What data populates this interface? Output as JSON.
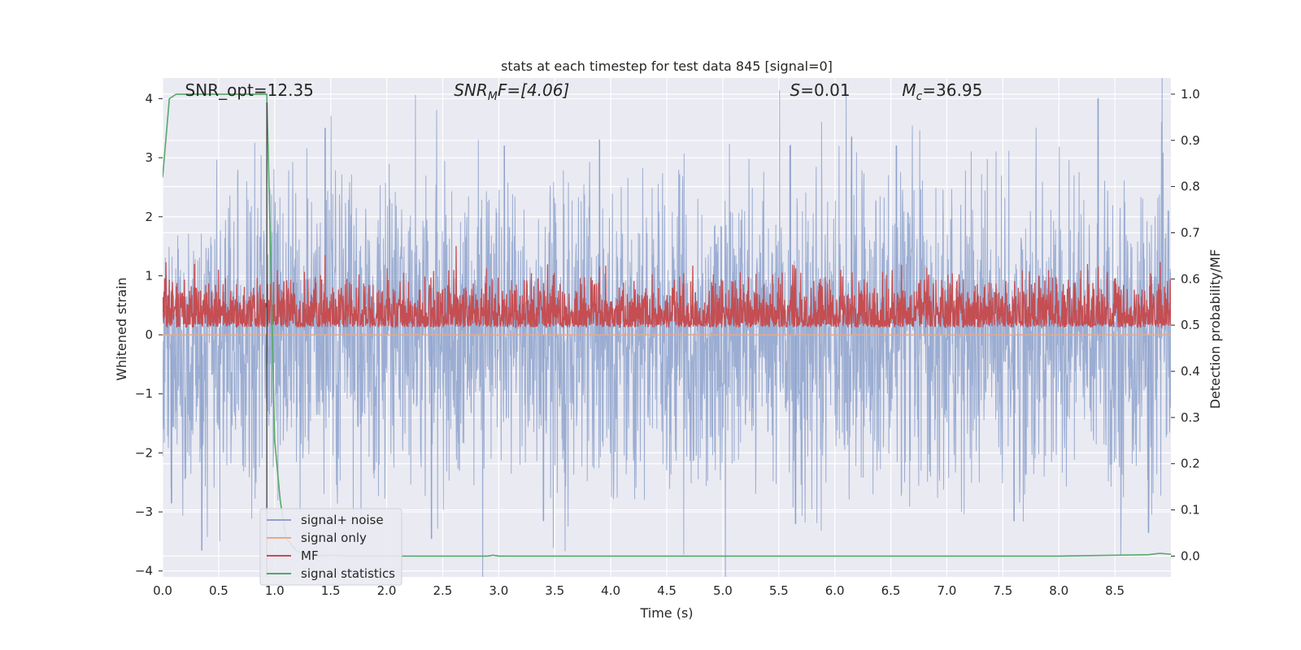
{
  "chart_data": {
    "type": "line",
    "title": "stats at each timestep for test data 845 [signal=0]",
    "xlabel": "Time (s)",
    "ylabel": "Whitened strain",
    "y2label": "Detection probability/MF",
    "xlim": [
      0,
      9
    ],
    "ylim": [
      -4.1,
      4.35
    ],
    "y2lim": [
      -0.045,
      1.035
    ],
    "x_ticks": [
      0.0,
      0.5,
      1.0,
      1.5,
      2.0,
      2.5,
      3.0,
      3.5,
      4.0,
      4.5,
      5.0,
      5.5,
      6.0,
      6.5,
      7.0,
      7.5,
      8.0,
      8.5
    ],
    "x_tick_labels": [
      "0.0",
      "0.5",
      "1.0",
      "1.5",
      "2.0",
      "2.5",
      "3.0",
      "3.5",
      "4.0",
      "4.5",
      "5.0",
      "5.5",
      "6.0",
      "6.5",
      "7.0",
      "7.5",
      "8.0",
      "8.5"
    ],
    "y_ticks": [
      4,
      3,
      2,
      1,
      0,
      -1,
      -2,
      -3,
      -4
    ],
    "y_tick_labels": [
      "4",
      "3",
      "2",
      "1",
      "0",
      "−1",
      "−2",
      "−3",
      "−4"
    ],
    "y2_ticks": [
      1.0,
      0.9,
      0.8,
      0.7,
      0.6,
      0.5,
      0.4,
      0.3,
      0.2,
      0.1,
      0.0
    ],
    "y2_tick_labels": [
      "1.0",
      "0.9",
      "0.8",
      "0.7",
      "0.6",
      "0.5",
      "0.4",
      "0.3",
      "0.2",
      "0.1",
      "0.0"
    ],
    "grid": true,
    "legend_position": "lower-left",
    "vertical_marker_x": 0.93,
    "annotations": [
      {
        "text": "SNR_opt=12.35",
        "x": 0.2,
        "y": 4.1
      },
      {
        "text": "SNR",
        "sub": "M",
        "suffix": "F=[4.06]",
        "italic": true,
        "x": 2.6,
        "y": 4.1
      },
      {
        "text": "S",
        "suffix": "=0.01",
        "italic": true,
        "x": 5.6,
        "y": 4.1
      },
      {
        "text": "M",
        "sub": "c",
        "suffix": "=36.95",
        "italic": true,
        "x": 6.6,
        "y": 4.1
      }
    ],
    "series": [
      {
        "name": "signal+ noise",
        "color": "#8da2cc",
        "axis": "left",
        "kind": "noise",
        "envelope_upper_typical": 2.0,
        "envelope_lower_typical": -2.0,
        "peaks": [
          {
            "x": 1.45,
            "y": 3.5
          },
          {
            "x": 3.05,
            "y": 3.2
          },
          {
            "x": 3.9,
            "y": 3.3
          },
          {
            "x": 5.6,
            "y": 3.2
          },
          {
            "x": 6.15,
            "y": 3.35
          },
          {
            "x": 6.55,
            "y": 3.2
          },
          {
            "x": 8.35,
            "y": 4.0
          },
          {
            "x": 0.35,
            "y": -3.65
          },
          {
            "x": 2.4,
            "y": -3.45
          },
          {
            "x": 3.4,
            "y": -3.15
          },
          {
            "x": 5.65,
            "y": -3.2
          },
          {
            "x": 7.6,
            "y": -3.15
          },
          {
            "x": 8.8,
            "y": -3.35
          },
          {
            "x": 0.08,
            "y": -2.85
          }
        ]
      },
      {
        "name": "signal only",
        "color": "#e8a98a",
        "axis": "left",
        "kind": "flat",
        "value": 0.0
      },
      {
        "name": "MF",
        "color": "#c44e52",
        "axis": "right",
        "kind": "noise",
        "mean": 0.52,
        "spread": 0.04,
        "peaks": [
          {
            "x": 0.02,
            "y": 0.6
          },
          {
            "x": 3.35,
            "y": 0.6
          },
          {
            "x": 8.5,
            "y": 0.6
          },
          {
            "x": 6.75,
            "y": 0.59
          },
          {
            "x": 4.55,
            "y": 0.58
          },
          {
            "x": 0.3,
            "y": 0.58
          }
        ]
      },
      {
        "name": "signal statistics",
        "color": "#55a868",
        "axis": "right",
        "kind": "line",
        "x": [
          0.0,
          0.06,
          0.12,
          0.2,
          0.5,
          0.85,
          0.93,
          0.96,
          1.0,
          1.05,
          1.1,
          1.2,
          1.35,
          1.5,
          1.7,
          2.0,
          2.9,
          2.95,
          3.0,
          4.0,
          5.0,
          6.0,
          7.0,
          8.0,
          8.8,
          8.9,
          9.0
        ],
        "y": [
          0.82,
          0.99,
          1.0,
          1.0,
          1.0,
          1.0,
          1.0,
          0.7,
          0.25,
          0.12,
          0.04,
          0.01,
          0.0,
          0.002,
          0.0,
          0.0,
          0.0,
          0.002,
          0.0,
          0.0,
          0.0,
          0.0,
          0.0,
          0.0,
          0.003,
          0.006,
          0.004
        ]
      }
    ]
  }
}
